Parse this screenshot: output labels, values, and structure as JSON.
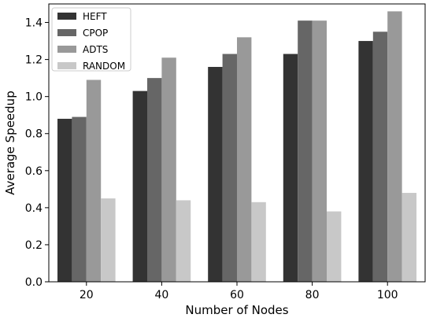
{
  "chart_data": {
    "type": "bar",
    "xlabel": "Number of Nodes",
    "ylabel": "Average Speedup",
    "categories": [
      "20",
      "40",
      "60",
      "80",
      "100"
    ],
    "ylim": [
      0.0,
      1.5
    ],
    "yticks": [
      "0.0",
      "0.2",
      "0.4",
      "0.6",
      "0.8",
      "1.0",
      "1.2",
      "1.4"
    ],
    "legend_position": "top-left",
    "grid": false,
    "series": [
      {
        "name": "HEFT",
        "color": "#333333",
        "values": [
          0.88,
          1.03,
          1.16,
          1.23,
          1.3
        ]
      },
      {
        "name": "CPOP",
        "color": "#666666",
        "values": [
          0.89,
          1.1,
          1.23,
          1.41,
          1.35
        ]
      },
      {
        "name": "ADTS",
        "color": "#999999",
        "values": [
          1.09,
          1.21,
          1.32,
          1.41,
          1.46
        ]
      },
      {
        "name": "RANDOM",
        "color": "#c8c8c8",
        "values": [
          0.45,
          0.44,
          0.43,
          0.38,
          0.48
        ]
      }
    ]
  }
}
